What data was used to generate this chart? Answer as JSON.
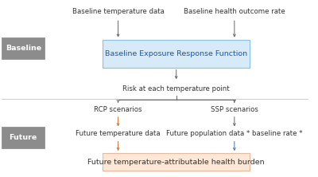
{
  "fig_width": 4.0,
  "fig_height": 2.22,
  "dpi": 100,
  "bg_color": "#ffffff",
  "sidebar_color": "#8c8c8c",
  "sidebar_text_color": "#ffffff",
  "baseline_box_color": "#d6eaf8",
  "baseline_box_edge": "#85c1e9",
  "future_box_color": "#fde8d8",
  "future_box_edge": "#e8b99a",
  "arrow_color_dark": "#666666",
  "arrow_color_orange": "#cc7733",
  "arrow_color_blue": "#4477aa",
  "divider_color": "#cccccc",
  "sidebar_baseline_label": "Baseline",
  "sidebar_future_label": "Future",
  "baseline_box_text": "Baseline Exposure Response Function",
  "future_box_text": "Future temperature-attributable health burden",
  "node_baseline_temp": "Baseline temperature data",
  "node_baseline_health": "Baseline health outcome rate",
  "node_risk": "Risk at each temperature point",
  "node_rcp": "RCP scenarios",
  "node_ssp": "SSP scenarios",
  "node_future_temp": "Future temperature data",
  "node_future_pop": "Future population data * baseline rate *",
  "font_size_node": 6.2,
  "font_size_sidebar": 6.8,
  "font_size_box": 6.8
}
